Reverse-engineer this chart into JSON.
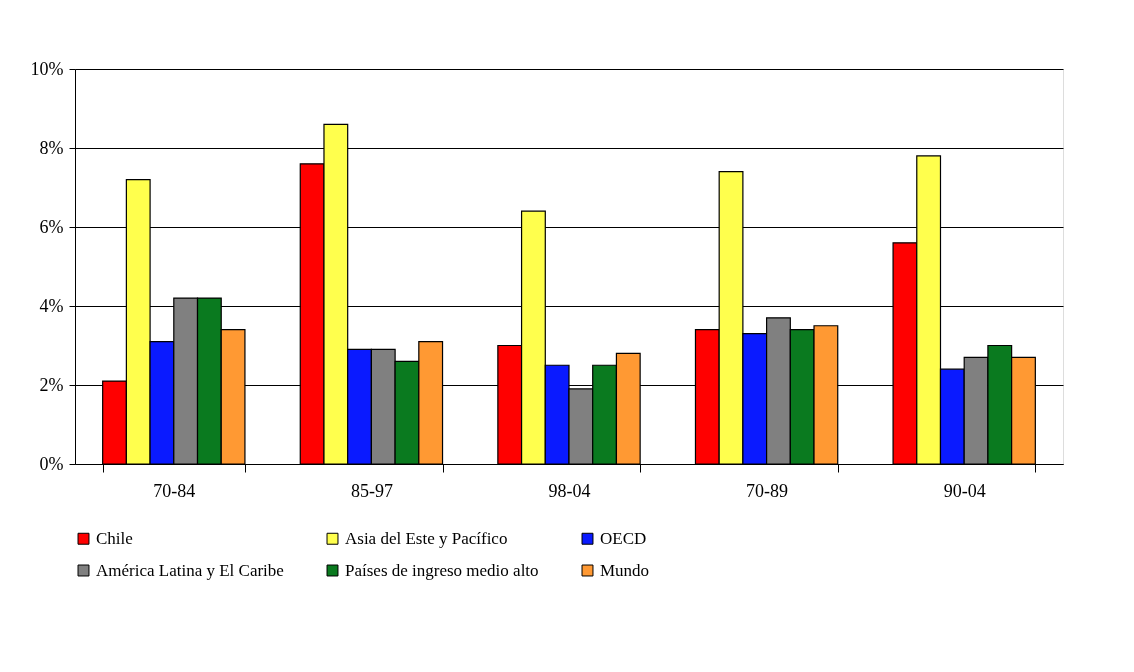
{
  "chart_data": {
    "type": "bar",
    "categories": [
      "70-84",
      "85-97",
      "98-04",
      "70-89",
      "90-04"
    ],
    "series": [
      {
        "name": "Chile",
        "color": "#ff0000",
        "values": [
          2.1,
          7.6,
          3.0,
          3.4,
          5.6
        ]
      },
      {
        "name": "Asia del Este  y Pacífico",
        "color": "#ffff4d",
        "values": [
          7.2,
          8.6,
          6.4,
          7.4,
          7.8
        ]
      },
      {
        "name": "OECD",
        "color": "#0a1aff",
        "values": [
          3.1,
          2.9,
          2.5,
          3.3,
          2.4
        ]
      },
      {
        "name": "América Latina y El Caribe",
        "color": "#808080",
        "values": [
          4.2,
          2.9,
          1.9,
          3.7,
          2.7
        ]
      },
      {
        "name": "Países de ingreso medio alto",
        "color": "#0a7a1f",
        "values": [
          4.2,
          2.6,
          2.5,
          3.4,
          3.0
        ]
      },
      {
        "name": "Mundo",
        "color": "#ff9933",
        "values": [
          3.4,
          3.1,
          2.8,
          3.5,
          2.7
        ]
      }
    ],
    "ylim": [
      0,
      10
    ],
    "yticks": [
      {
        "value": 0,
        "label": "0%"
      },
      {
        "value": 2,
        "label": "2%"
      },
      {
        "value": 4,
        "label": "4%"
      },
      {
        "value": 6,
        "label": "6%"
      },
      {
        "value": 8,
        "label": "8%"
      },
      {
        "value": 10,
        "label": "10%"
      }
    ],
    "grid": "y",
    "legend": "bottom"
  }
}
